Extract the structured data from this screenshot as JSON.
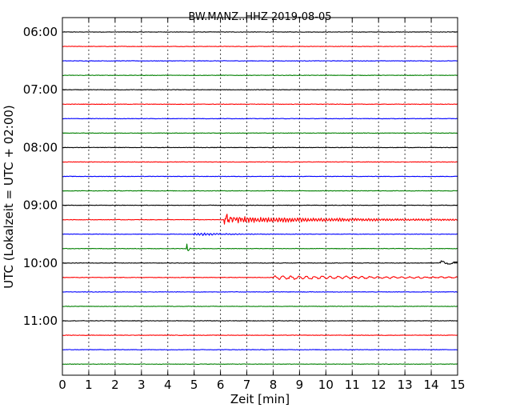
{
  "chart_data": {
    "type": "line",
    "title": "BW.MANZ..HHZ 2019-08-05",
    "xlabel": "Zeit  [min]",
    "ylabel": "UTC (Lokalzeit = UTC + 02:00)",
    "xlim": [
      0,
      15
    ],
    "x_ticks": [
      "0",
      "1",
      "2",
      "3",
      "4",
      "5",
      "6",
      "7",
      "8",
      "9",
      "10",
      "11",
      "12",
      "13",
      "14",
      "15"
    ],
    "y_tick_labels": [
      "06:00",
      "07:00",
      "08:00",
      "09:00",
      "10:00",
      "11:00"
    ],
    "line_interval_minutes": 15,
    "grid": "vertical-dotted",
    "color_cycle": [
      "#000000",
      "#ff0000",
      "#0000ff",
      "#008000"
    ],
    "traces": [
      {
        "start": "06:00",
        "events": []
      },
      {
        "start": "06:15",
        "events": []
      },
      {
        "start": "06:30",
        "events": []
      },
      {
        "start": "06:45",
        "events": []
      },
      {
        "start": "07:00",
        "events": []
      },
      {
        "start": "07:15",
        "events": []
      },
      {
        "start": "07:30",
        "events": []
      },
      {
        "start": "07:45",
        "events": []
      },
      {
        "start": "08:00",
        "events": []
      },
      {
        "start": "08:15",
        "events": []
      },
      {
        "start": "08:30",
        "events": []
      },
      {
        "start": "08:45",
        "events": []
      },
      {
        "start": "09:00",
        "events": []
      },
      {
        "start": "09:15",
        "events": [
          {
            "t": 6.15,
            "amp": 0.75,
            "decay": 0.25,
            "period": 0.05
          },
          {
            "t": 6.5,
            "amp": 0.13,
            "decay": 5.5,
            "period": 0.1
          }
        ]
      },
      {
        "start": "09:30",
        "events": [
          {
            "t": 5.0,
            "amp": 0.07,
            "decay": 1.2,
            "period": 0.12
          }
        ]
      },
      {
        "start": "09:45",
        "events": [
          {
            "t": 4.72,
            "amp": 0.3,
            "decay": 0.06,
            "period": 0.03
          }
        ]
      },
      {
        "start": "10:00",
        "events": [
          {
            "t": 14.3,
            "amp": 0.1,
            "decay": 0.8,
            "period": 0.5
          }
        ]
      },
      {
        "start": "10:15",
        "events": [
          {
            "t": 8.0,
            "amp": 0.08,
            "decay": 6.0,
            "period": 0.3
          }
        ]
      },
      {
        "start": "10:30",
        "events": []
      },
      {
        "start": "10:45",
        "events": []
      },
      {
        "start": "11:00",
        "events": []
      },
      {
        "start": "11:15",
        "events": []
      },
      {
        "start": "11:30",
        "events": []
      },
      {
        "start": "11:45",
        "events": []
      }
    ]
  }
}
